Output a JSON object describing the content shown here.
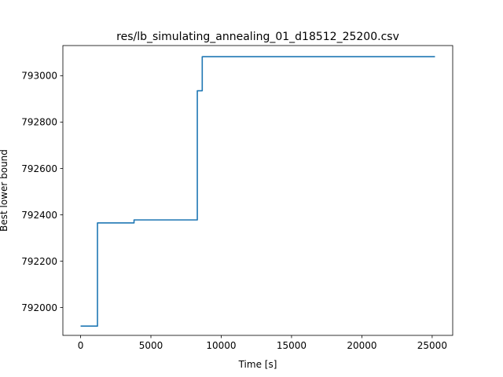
{
  "chart_data": {
    "type": "line",
    "title": "res/lb_simulating_annealing_01_d18512_25200.csv",
    "xlabel": "Time [s]",
    "ylabel": "Best lower bound",
    "xlim": [
      -1260,
      26460
    ],
    "ylim": [
      791880,
      793130
    ],
    "xticks": [
      0,
      5000,
      10000,
      15000,
      20000,
      25000
    ],
    "yticks": [
      792000,
      792200,
      792400,
      792600,
      792800,
      793000
    ],
    "xtick_labels": [
      "0",
      "5000",
      "10000",
      "15000",
      "20000",
      "25000"
    ],
    "ytick_labels": [
      "792000",
      "792200",
      "792400",
      "792600",
      "792800",
      "793000"
    ],
    "step": "post",
    "grid": false,
    "series": [
      {
        "color": "#1f77b4",
        "x": [
          0,
          1200,
          3800,
          8300,
          8650,
          25200
        ],
        "y": [
          791920,
          792365,
          792378,
          792935,
          793082,
          793082
        ]
      }
    ]
  }
}
